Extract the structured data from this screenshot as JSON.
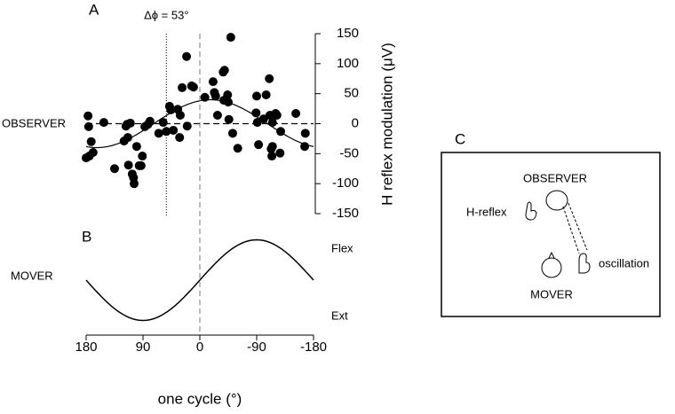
{
  "chart_data": {
    "type": "scatter",
    "panel_label": "A",
    "row_label": "OBSERVER",
    "xlabel": "one cycle (°)",
    "ylabel": "H reflex modulation (μV)",
    "annotation": {
      "value": 53,
      "label": "Δϕ = 53°"
    },
    "xlim": [
      180,
      -180
    ],
    "xticks": [
      180,
      90,
      0,
      -90,
      -180
    ],
    "ylim": [
      -150,
      150
    ],
    "yticks": [
      150,
      100,
      50,
      0,
      -50,
      -100,
      -150
    ],
    "color": "#000000",
    "x": [
      177,
      176,
      180,
      172,
      175,
      169,
      152,
      135,
      117,
      114,
      120,
      115,
      110,
      113,
      107,
      104,
      105,
      100,
      96,
      93,
      91,
      87,
      82,
      79,
      65,
      58,
      53,
      48,
      46,
      42,
      35,
      32,
      31,
      28,
      21,
      20,
      13,
      10,
      -8,
      -21,
      -23,
      -25,
      -28,
      -37,
      -39,
      -38,
      -44,
      -45,
      -46,
      -49,
      -52,
      -60,
      -90,
      -89,
      -91,
      -93,
      -101,
      -105,
      -110,
      -111,
      -113,
      -114,
      -115,
      -115,
      -120,
      -122,
      -127,
      -128,
      -152,
      -166,
      -167
    ],
    "y": [
      13,
      -5,
      -57,
      -30,
      -54,
      -48,
      2,
      -75,
      -4,
      -23,
      -29,
      -1,
      1,
      -69,
      -84,
      -100,
      -90,
      -38,
      -70,
      -70,
      -54,
      -5,
      -1,
      4,
      -16,
      2,
      -13,
      29,
      23,
      -11,
      24,
      -23,
      14,
      60,
      112,
      -4,
      63,
      61,
      44,
      70,
      52,
      46,
      14,
      86,
      89,
      39,
      48,
      36,
      7,
      144,
      -16,
      -41,
      46,
      18,
      2,
      -35,
      8,
      48,
      75,
      14,
      -42,
      -54,
      2,
      -38,
      17,
      14,
      -49,
      -13,
      17,
      -38,
      -16
    ]
  },
  "panel_b": {
    "panel_label": "B",
    "row_label": "MOVER",
    "top_label": "Flex",
    "bottom_label": "Ext"
  },
  "panel_c": {
    "panel_label": "C",
    "observer": "OBSERVER",
    "h_reflex": "H-reflex",
    "oscillation": "oscillation",
    "mover": "MOVER"
  }
}
